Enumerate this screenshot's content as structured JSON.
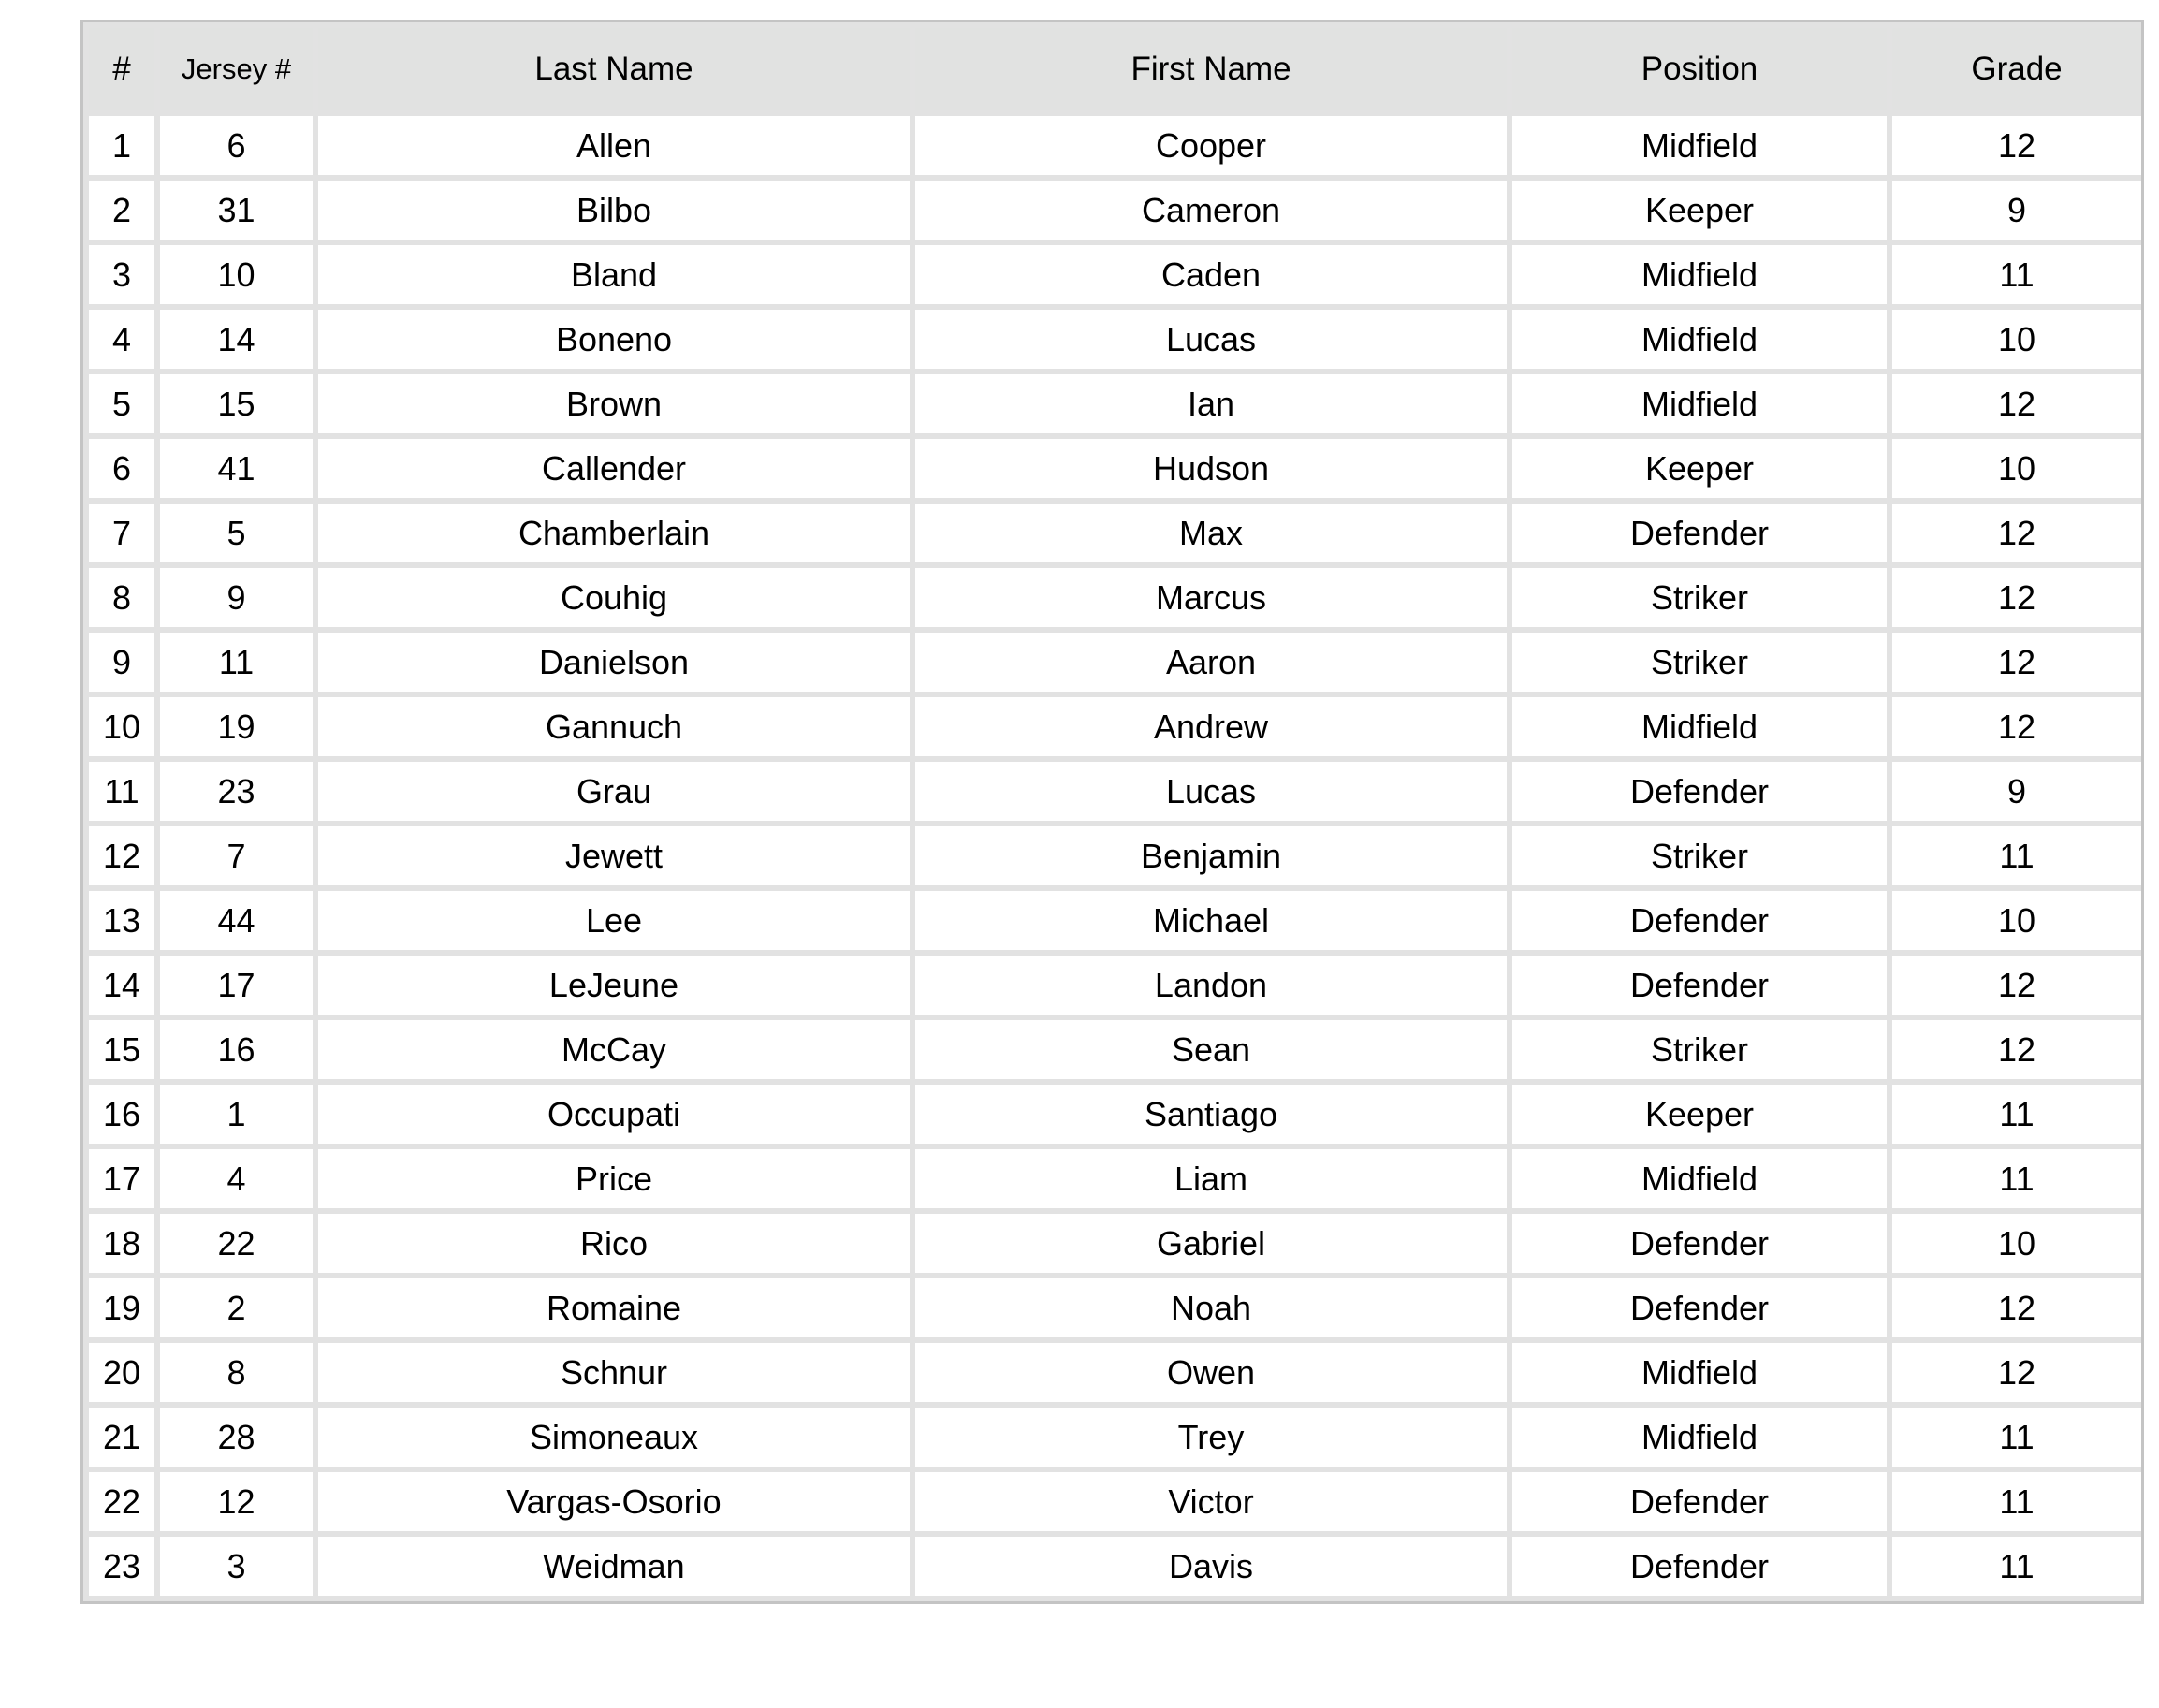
{
  "table": {
    "headers": [
      "#",
      "Jersey #",
      "Last Name",
      "First Name",
      "Position",
      "Grade"
    ],
    "rows": [
      [
        "1",
        "6",
        "Allen",
        "Cooper",
        "Midfield",
        "12"
      ],
      [
        "2",
        "31",
        "Bilbo",
        "Cameron",
        "Keeper",
        "9"
      ],
      [
        "3",
        "10",
        "Bland",
        "Caden",
        "Midfield",
        "11"
      ],
      [
        "4",
        "14",
        "Boneno",
        "Lucas",
        "Midfield",
        "10"
      ],
      [
        "5",
        "15",
        "Brown",
        "Ian",
        "Midfield",
        "12"
      ],
      [
        "6",
        "41",
        "Callender",
        "Hudson",
        "Keeper",
        "10"
      ],
      [
        "7",
        "5",
        "Chamberlain",
        "Max",
        "Defender",
        "12"
      ],
      [
        "8",
        "9",
        "Couhig",
        "Marcus",
        "Striker",
        "12"
      ],
      [
        "9",
        "11",
        "Danielson",
        "Aaron",
        "Striker",
        "12"
      ],
      [
        "10",
        "19",
        "Gannuch",
        "Andrew",
        "Midfield",
        "12"
      ],
      [
        "11",
        "23",
        "Grau",
        "Lucas",
        "Defender",
        "9"
      ],
      [
        "12",
        "7",
        "Jewett",
        "Benjamin",
        "Striker",
        "11"
      ],
      [
        "13",
        "44",
        "Lee",
        "Michael",
        "Defender",
        "10"
      ],
      [
        "14",
        "17",
        "LeJeune",
        "Landon",
        "Defender",
        "12"
      ],
      [
        "15",
        "16",
        "McCay",
        "Sean",
        "Striker",
        "12"
      ],
      [
        "16",
        "1",
        "Occupati",
        "Santiago",
        "Keeper",
        "11"
      ],
      [
        "17",
        "4",
        "Price",
        "Liam",
        "Midfield",
        "11"
      ],
      [
        "18",
        "22",
        "Rico",
        "Gabriel",
        "Defender",
        "10"
      ],
      [
        "19",
        "2",
        "Romaine",
        "Noah",
        "Defender",
        "12"
      ],
      [
        "20",
        "8",
        "Schnur",
        "Owen",
        "Midfield",
        "12"
      ],
      [
        "21",
        "28",
        "Simoneaux",
        "Trey",
        "Midfield",
        "11"
      ],
      [
        "22",
        "12",
        "Vargas-Osorio",
        "Victor",
        "Defender",
        "11"
      ],
      [
        "23",
        "3",
        "Weidman",
        "Davis",
        "Defender",
        "11"
      ]
    ]
  }
}
